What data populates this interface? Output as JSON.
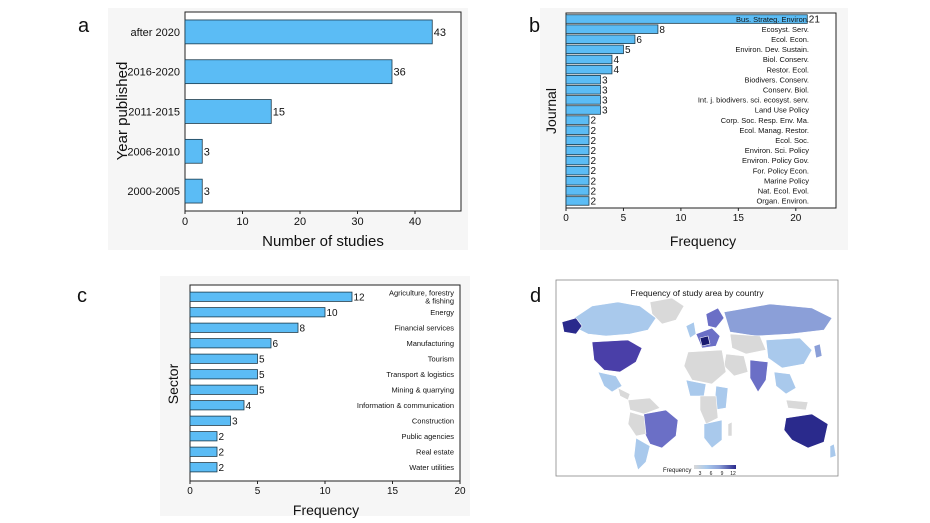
{
  "panel_labels": {
    "a": "a",
    "b": "b",
    "c": "c",
    "d": "d"
  },
  "chart_data": [
    {
      "id": "a",
      "type": "bar",
      "orientation": "horizontal",
      "categories": [
        "after 2020",
        "2016-2020",
        "2011-2015",
        "2006-2010",
        "2000-2005"
      ],
      "values": [
        43,
        36,
        15,
        3,
        3
      ],
      "xlabel": "Number of studies",
      "ylabel": "Year published",
      "xlim": [
        0,
        48
      ],
      "xticks": [
        0,
        10,
        20,
        30,
        40
      ]
    },
    {
      "id": "b",
      "type": "bar",
      "orientation": "horizontal",
      "categories": [
        "Bus. Strateg. Environ.",
        "Ecosyst. Serv.",
        "Ecol. Econ.",
        "Environ. Dev. Sustain.",
        "Biol. Conserv.",
        "Restor. Ecol.",
        "Biodivers. Conserv.",
        "Conserv. Biol.",
        "Int. j. biodivers. sci. ecosyst. serv.",
        "Land Use Policy",
        "Corp. Soc. Resp. Env. Ma.",
        "Ecol. Manag. Restor.",
        "Ecol. Soc.",
        "Environ. Sci. Policy",
        "Environ. Policy Gov.",
        "For. Policy Econ.",
        "Marine Policy",
        "Nat. Ecol. Evol.",
        "Organ. Environ."
      ],
      "values": [
        21,
        8,
        6,
        5,
        4,
        4,
        3,
        3,
        3,
        3,
        2,
        2,
        2,
        2,
        2,
        2,
        2,
        2,
        2
      ],
      "xlabel": "Frequency",
      "ylabel": "Journal",
      "xlim": [
        0,
        23.5
      ],
      "xticks": [
        0,
        5,
        10,
        15,
        20
      ]
    },
    {
      "id": "c",
      "type": "bar",
      "orientation": "horizontal",
      "categories": [
        "Agriculture, forestry & fishing",
        "Energy",
        "Financial services",
        "Manufacturing",
        "Tourism",
        "Transport & logistics",
        "Mining & quarrying",
        "Information & communication",
        "Construction",
        "Public agencies",
        "Real estate",
        "Water utilities"
      ],
      "values": [
        12,
        10,
        8,
        6,
        5,
        5,
        5,
        4,
        3,
        2,
        2,
        2
      ],
      "xlabel": "Frequency",
      "ylabel": "Sector",
      "xlim": [
        0,
        20
      ],
      "xticks": [
        0,
        5,
        10,
        15,
        20
      ]
    },
    {
      "id": "d",
      "type": "map",
      "title": "Frequency of study area by country",
      "legend_title": "Frequency",
      "legend_ticks": [
        3,
        6,
        9,
        12
      ],
      "color_scale": [
        "#d9d9d9",
        "#a9c9ec",
        "#8b9fd8",
        "#6b6fc6",
        "#2a2a8c"
      ]
    }
  ]
}
